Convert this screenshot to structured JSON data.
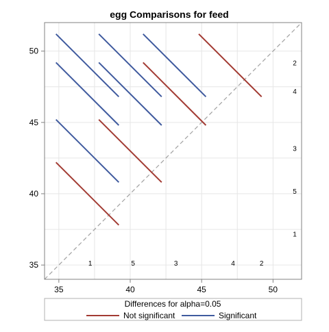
{
  "chart_data": {
    "type": "line",
    "title": "egg Comparisons for feed",
    "xlabel": "",
    "ylabel": "",
    "xlim": [
      34,
      52
    ],
    "ylim": [
      34,
      52
    ],
    "x_ticks": [
      35,
      40,
      45,
      50
    ],
    "y_ticks": [
      35,
      40,
      45,
      50
    ],
    "grid": true,
    "diagonal": "y = x reference line, dashed gray",
    "legend_title": "Differences for alpha=0.05",
    "legend_position": "bottom",
    "colors": {
      "not_significant": "#A23A32",
      "significant": "#3F5A9E",
      "diagonal": "#A0A0A0",
      "grid": "#E6E6E6"
    },
    "series": [
      {
        "name": "Not significant",
        "color_key": "not_significant",
        "segments": [
          {
            "x": [
              44.8,
              49.2
            ],
            "y": [
              51.2,
              46.8
            ]
          },
          {
            "x": [
              40.9,
              45.3
            ],
            "y": [
              49.2,
              44.8
            ]
          },
          {
            "x": [
              37.8,
              42.2
            ],
            "y": [
              45.2,
              40.8
            ]
          },
          {
            "x": [
              34.8,
              39.2
            ],
            "y": [
              42.2,
              37.8
            ]
          }
        ]
      },
      {
        "name": "Significant",
        "color_key": "significant",
        "segments": [
          {
            "x": [
              34.8,
              39.2
            ],
            "y": [
              51.2,
              46.8
            ]
          },
          {
            "x": [
              37.8,
              42.2
            ],
            "y": [
              51.2,
              46.8
            ]
          },
          {
            "x": [
              40.9,
              45.3
            ],
            "y": [
              51.2,
              46.8
            ]
          },
          {
            "x": [
              34.8,
              39.2
            ],
            "y": [
              49.2,
              44.8
            ]
          },
          {
            "x": [
              37.8,
              42.2
            ],
            "y": [
              49.2,
              44.8
            ]
          },
          {
            "x": [
              34.8,
              39.2
            ],
            "y": [
              45.2,
              40.8
            ]
          }
        ]
      }
    ],
    "level_labels_bottom": [
      {
        "label": "1",
        "x": 37.2
      },
      {
        "label": "5",
        "x": 40.2
      },
      {
        "label": "3",
        "x": 43.2
      },
      {
        "label": "4",
        "x": 47.2
      },
      {
        "label": "2",
        "x": 49.2
      }
    ],
    "level_labels_right": [
      {
        "label": "2",
        "y": 49.2
      },
      {
        "label": "4",
        "y": 47.2
      },
      {
        "label": "3",
        "y": 43.2
      },
      {
        "label": "5",
        "y": 40.2
      },
      {
        "label": "1",
        "y": 37.2
      }
    ]
  }
}
